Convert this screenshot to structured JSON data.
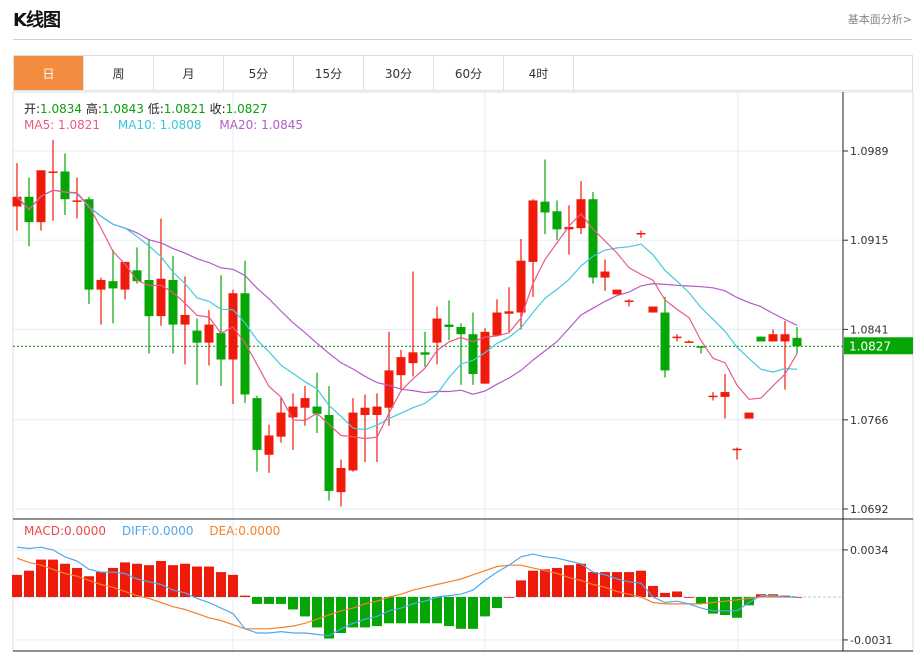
{
  "header": {
    "title": "K线图",
    "fundamental_link": "基本面分析>"
  },
  "tabs": [
    {
      "label": "日",
      "active": true
    },
    {
      "label": "周",
      "active": false
    },
    {
      "label": "月",
      "active": false
    },
    {
      "label": "5分",
      "active": false
    },
    {
      "label": "15分",
      "active": false
    },
    {
      "label": "30分",
      "active": false
    },
    {
      "label": "60分",
      "active": false
    },
    {
      "label": "4时",
      "active": false
    }
  ],
  "ohlc_info": {
    "open_label": "开:",
    "open": "1.0834",
    "high_label": "高:",
    "high": "1.0843",
    "low_label": "低:",
    "low": "1.0821",
    "close_label": "收:",
    "close": "1.0827"
  },
  "ma_info": {
    "ma5": "MA5: 1.0821",
    "ma10": "MA10: 1.0808",
    "ma20": "MA20: 1.0845"
  },
  "macd_info": {
    "macd": "MACD:0.0000",
    "diff": "DIFF:0.0000",
    "dea": "DEA:0.0000"
  },
  "colors": {
    "up": "#f01a0a",
    "down": "#05a605",
    "ma5": "#ea5a86",
    "ma10": "#45c9dd",
    "ma20": "#b45ac9",
    "diff": "#52a8ec",
    "dea": "#f4822a",
    "active_tab": "#f28c3e"
  },
  "chart_data": {
    "type": "candlestick",
    "price_axis": {
      "ticks": [
        "1.0989",
        "1.0915",
        "1.0841",
        "1.0766",
        "1.0692"
      ],
      "range": [
        1.0692,
        1.0989
      ]
    },
    "current_price": "1.0827",
    "candles": [
      [
        1.0943,
        1.0979,
        1.0923,
        1.0951
      ],
      [
        1.0951,
        1.0967,
        1.091,
        1.093
      ],
      [
        1.093,
        1.0973,
        1.0923,
        1.0973
      ],
      [
        1.0972,
        1.0998,
        1.0931,
        1.0972
      ],
      [
        1.0972,
        1.0987,
        1.0936,
        1.0949
      ],
      [
        1.0947,
        1.0967,
        1.0933,
        1.0948
      ],
      [
        1.0949,
        1.0951,
        1.0862,
        1.0874
      ],
      [
        1.0874,
        1.0884,
        1.0845,
        1.0882
      ],
      [
        1.0881,
        1.0907,
        1.0846,
        1.0875
      ],
      [
        1.0874,
        1.0897,
        1.0866,
        1.0897
      ],
      [
        1.089,
        1.0909,
        1.0879,
        1.0881
      ],
      [
        1.0882,
        1.0916,
        1.0821,
        1.0852
      ],
      [
        1.0852,
        1.0933,
        1.0844,
        1.0883
      ],
      [
        1.0882,
        1.0902,
        1.0821,
        1.0845
      ],
      [
        1.0845,
        1.0885,
        1.0812,
        1.0853
      ],
      [
        1.084,
        1.085,
        1.0795,
        1.083
      ],
      [
        1.083,
        1.0857,
        1.0811,
        1.0845
      ],
      [
        1.0838,
        1.0886,
        1.0794,
        1.0816
      ],
      [
        1.0816,
        1.0874,
        1.0779,
        1.0871
      ],
      [
        1.0871,
        1.0898,
        1.078,
        1.0787
      ],
      [
        1.0784,
        1.0786,
        1.0723,
        1.0741
      ],
      [
        1.0737,
        1.0762,
        1.0722,
        1.0753
      ],
      [
        1.0752,
        1.0784,
        1.0747,
        1.0772
      ],
      [
        1.0768,
        1.0788,
        1.0741,
        1.0777
      ],
      [
        1.0776,
        1.0794,
        1.0761,
        1.0784
      ],
      [
        1.0777,
        1.0805,
        1.0755,
        1.0771
      ],
      [
        1.077,
        1.0794,
        1.0699,
        1.0707
      ],
      [
        1.0706,
        1.0733,
        1.0694,
        1.0726
      ],
      [
        1.0724,
        1.0784,
        1.0723,
        1.0772
      ],
      [
        1.077,
        1.0787,
        1.0731,
        1.0776
      ],
      [
        1.077,
        1.0788,
        1.0731,
        1.0777
      ],
      [
        1.0776,
        1.0839,
        1.0761,
        1.0807
      ],
      [
        1.0803,
        1.0824,
        1.0791,
        1.0818
      ],
      [
        1.0813,
        1.0889,
        1.0802,
        1.0822
      ],
      [
        1.0822,
        1.0839,
        1.081,
        1.082
      ],
      [
        1.083,
        1.086,
        1.0812,
        1.085
      ],
      [
        1.0845,
        1.0865,
        1.0832,
        1.0843
      ],
      [
        1.0843,
        1.0846,
        1.0795,
        1.0837
      ],
      [
        1.0837,
        1.0855,
        1.0795,
        1.0804
      ],
      [
        1.0796,
        1.0842,
        1.0796,
        1.0839
      ],
      [
        1.0836,
        1.0866,
        1.0836,
        1.0855
      ],
      [
        1.0854,
        1.0876,
        1.0839,
        1.0856
      ],
      [
        1.0855,
        1.0916,
        1.0841,
        1.0898
      ],
      [
        1.0897,
        1.0949,
        1.0868,
        1.0948
      ],
      [
        1.0947,
        1.0982,
        1.092,
        1.0938
      ],
      [
        1.0939,
        1.0948,
        1.0915,
        1.0924
      ],
      [
        1.0924,
        1.0944,
        1.0903,
        1.0926
      ],
      [
        1.0925,
        1.0964,
        1.092,
        1.0949
      ],
      [
        1.0949,
        1.0955,
        1.0879,
        1.0884
      ],
      [
        1.0884,
        1.0899,
        1.0873,
        1.0889
      ],
      [
        1.087,
        1.0874,
        1.087,
        1.0874
      ],
      [
        1.0865,
        1.0866,
        1.086,
        1.0865
      ],
      [
        1.0921,
        1.0923,
        1.0917,
        1.0921
      ],
      [
        1.0855,
        1.086,
        1.0855,
        1.086
      ],
      [
        1.0855,
        1.0868,
        1.0801,
        1.0807
      ],
      [
        1.0835,
        1.0837,
        1.0831,
        1.0835
      ],
      [
        1.0831,
        1.0832,
        1.083,
        1.0831
      ],
      [
        1.0827,
        1.0827,
        1.0821,
        1.0826
      ],
      [
        1.0786,
        1.0789,
        1.0782,
        1.0786
      ],
      [
        1.0785,
        1.0804,
        1.0767,
        1.0789
      ],
      [
        1.0742,
        1.0743,
        1.0733,
        1.0742
      ],
      [
        1.0767,
        1.0772,
        1.0767,
        1.0772
      ],
      [
        1.0835,
        1.0835,
        1.0831,
        1.0831
      ],
      [
        1.0831,
        1.0841,
        1.0831,
        1.0837
      ],
      [
        1.0831,
        1.0848,
        1.0791,
        1.0837
      ],
      [
        1.0834,
        1.0843,
        1.0821,
        1.0827
      ]
    ],
    "macd_axis": {
      "ticks": [
        "0.0034",
        "-0.0031"
      ],
      "range": [
        -0.0031,
        0.0034
      ]
    },
    "macd_hist": [
      0.0016,
      0.0019,
      0.0027,
      0.0027,
      0.0024,
      0.0021,
      0.0015,
      0.0018,
      0.0021,
      0.0025,
      0.0024,
      0.0023,
      0.0026,
      0.0023,
      0.0024,
      0.0022,
      0.0022,
      0.0018,
      0.0016,
      0.0001,
      -0.0005,
      -0.0005,
      -0.0005,
      -0.0009,
      -0.0014,
      -0.0022,
      -0.003,
      -0.0026,
      -0.0022,
      -0.0022,
      -0.0021,
      -0.0019,
      -0.0019,
      -0.0019,
      -0.0019,
      -0.0019,
      -0.0021,
      -0.0023,
      -0.0023,
      -0.0014,
      -0.0008,
      0.0,
      0.0012,
      0.0019,
      0.002,
      0.0021,
      0.0023,
      0.0024,
      0.0018,
      0.0018,
      0.0018,
      0.0018,
      0.0019,
      0.0008,
      0.0003,
      0.0004,
      0.0,
      -0.0005,
      -0.0012,
      -0.0013,
      -0.0015,
      -0.0006,
      0.0002,
      0.0002,
      0.0001,
      0.0
    ],
    "diff": [
      0.0036,
      0.0035,
      0.0036,
      0.0034,
      0.0029,
      0.0026,
      0.002,
      0.0018,
      0.0018,
      0.0017,
      0.0013,
      0.0011,
      0.0009,
      0.0005,
      0.0003,
      -0.0001,
      -0.0004,
      -0.0008,
      -0.0012,
      -0.0023,
      -0.0026,
      -0.0026,
      -0.0025,
      -0.0026,
      -0.0026,
      -0.0027,
      -0.0028,
      -0.0023,
      -0.0019,
      -0.0016,
      -0.0014,
      -0.001,
      -0.0008,
      -0.0005,
      -0.0003,
      0.0,
      0.0001,
      0.0002,
      0.0005,
      0.0012,
      0.0018,
      0.0023,
      0.0029,
      0.0031,
      0.0029,
      0.0028,
      0.0026,
      0.0024,
      0.0018,
      0.0016,
      0.0013,
      0.0011,
      0.001,
      0.0,
      -0.0004,
      -0.0003,
      -0.0005,
      -0.0008,
      -0.001,
      -0.001,
      -0.001,
      -0.0004,
      0.0001,
      0.0001,
      0.0,
      0.0
    ],
    "dea": [
      0.0028,
      0.0025,
      0.0023,
      0.002,
      0.0017,
      0.0015,
      0.0012,
      0.0009,
      0.0007,
      0.0004,
      0.0001,
      -0.0001,
      -0.0004,
      -0.0007,
      -0.0009,
      -0.0012,
      -0.0015,
      -0.0017,
      -0.002,
      -0.0023,
      -0.0023,
      -0.0023,
      -0.0022,
      -0.0021,
      -0.0019,
      -0.0016,
      -0.0013,
      -0.001,
      -0.0008,
      -0.0005,
      -0.0003,
      0.0,
      0.0002,
      0.0005,
      0.0007,
      0.0009,
      0.0011,
      0.0013,
      0.0016,
      0.0019,
      0.0022,
      0.0023,
      0.0023,
      0.0021,
      0.0019,
      0.0017,
      0.0014,
      0.0012,
      0.0009,
      0.0007,
      0.0004,
      0.0002,
      0.0,
      -0.0004,
      -0.0005,
      -0.0005,
      -0.0005,
      -0.0005,
      -0.0004,
      -0.0003,
      -0.0002,
      -0.0001,
      0.0,
      0.0,
      0.0,
      0.0
    ]
  }
}
